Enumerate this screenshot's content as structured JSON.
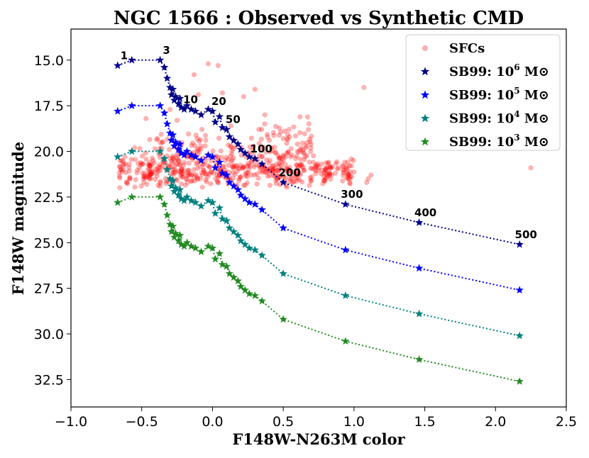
{
  "chart_data": {
    "type": "scatter",
    "title": "NGC 1566 : Observed vs Synthetic CMD",
    "xlabel": "F148W-N263M color",
    "ylabel": "F148W magnitude",
    "xlim": [
      -1.0,
      2.5
    ],
    "ylim": [
      34.0,
      13.3
    ],
    "y_inverted": true,
    "xticks": [
      -1.0,
      -0.5,
      0.0,
      0.5,
      1.0,
      1.5,
      2.0,
      2.5
    ],
    "xtick_labels": [
      "−1.0",
      "−0.5",
      "0.0",
      "0.5",
      "1.0",
      "1.5",
      "2.0",
      "2.5"
    ],
    "yticks": [
      15.0,
      17.5,
      20.0,
      22.5,
      25.0,
      27.5,
      30.0,
      32.5
    ],
    "ytick_labels": [
      "15.0",
      "17.5",
      "20.0",
      "22.5",
      "25.0",
      "27.5",
      "30.0",
      "32.5"
    ],
    "legend_position": "top-right",
    "sfc_cloud": {
      "name": "SFCs",
      "color": "#ff0000",
      "count": 650,
      "color_range": [
        -0.68,
        2.25
      ],
      "magnitude_range": [
        15.0,
        22.0
      ],
      "note": "observed SFCs: dense band at F148W 20-22 mag, sparser bright tail to ~15 mag"
    },
    "sfc_points": [
      [
        -0.03,
        15.2
      ],
      [
        0.04,
        15.3
      ],
      [
        -0.13,
        15.8
      ],
      [
        0.07,
        16.8
      ],
      [
        1.07,
        16.5
      ],
      [
        1.1,
        21.5
      ],
      [
        1.09,
        21.7
      ],
      [
        1.12,
        21.3
      ],
      [
        2.25,
        20.9
      ],
      [
        0.95,
        21.2
      ],
      [
        0.82,
        20.6
      ],
      [
        0.66,
        19.8
      ],
      [
        0.5,
        19.3
      ],
      [
        0.37,
        18.0
      ],
      [
        0.22,
        17.0
      ],
      [
        -0.1,
        16.9
      ],
      [
        -0.3,
        17.7
      ],
      [
        -0.25,
        18.3
      ],
      [
        -0.47,
        18.2
      ],
      [
        0.13,
        18.6
      ],
      [
        0.54,
        18.8
      ],
      [
        0.6,
        19.6
      ],
      [
        -0.55,
        19.8
      ],
      [
        -0.62,
        20.3
      ],
      [
        0.3,
        16.6
      ]
    ],
    "series": [
      {
        "name": "SB99: 10^6 M⊙",
        "legend_base": "SB99: 10",
        "legend_exp": "6",
        "legend_unit": " M⊙",
        "color": "#00008b",
        "x": [
          -0.67,
          -0.57,
          -0.37,
          -0.34,
          -0.32,
          -0.3,
          -0.29,
          -0.28,
          -0.27,
          -0.26,
          -0.24,
          -0.23,
          -0.22,
          -0.2,
          -0.18,
          -0.15,
          -0.12,
          -0.08,
          -0.03,
          0.0,
          0.02,
          0.05,
          0.07,
          0.1,
          0.12,
          0.15,
          0.18,
          0.2,
          0.23,
          0.26,
          0.3,
          0.35,
          0.5,
          0.94,
          1.46,
          2.17
        ],
        "y": [
          15.3,
          15.0,
          15.0,
          15.4,
          16.0,
          16.5,
          16.9,
          16.6,
          17.2,
          17.0,
          17.4,
          17.1,
          17.6,
          17.7,
          17.5,
          17.7,
          17.8,
          18.0,
          17.7,
          17.8,
          18.4,
          18.1,
          18.7,
          18.8,
          19.2,
          19.4,
          19.6,
          19.9,
          20.1,
          20.3,
          20.4,
          20.7,
          21.7,
          22.9,
          23.9,
          25.1
        ]
      },
      {
        "name": "SB99: 10^5 M⊙",
        "legend_base": "SB99: 10",
        "legend_exp": "5",
        "legend_unit": " M⊙",
        "color": "#0000ff",
        "x": [
          -0.67,
          -0.57,
          -0.37,
          -0.34,
          -0.32,
          -0.3,
          -0.29,
          -0.28,
          -0.27,
          -0.26,
          -0.24,
          -0.23,
          -0.22,
          -0.2,
          -0.18,
          -0.15,
          -0.12,
          -0.08,
          -0.03,
          0.0,
          0.02,
          0.05,
          0.07,
          0.1,
          0.12,
          0.15,
          0.18,
          0.2,
          0.23,
          0.26,
          0.3,
          0.35,
          0.5,
          0.94,
          1.46,
          2.17
        ],
        "y": [
          17.8,
          17.5,
          17.5,
          17.9,
          18.5,
          19.0,
          19.4,
          19.1,
          19.7,
          19.5,
          19.9,
          19.6,
          20.1,
          20.2,
          20.0,
          20.2,
          20.3,
          20.5,
          20.2,
          20.3,
          20.9,
          20.6,
          21.2,
          21.3,
          21.7,
          21.9,
          22.1,
          22.4,
          22.6,
          22.8,
          22.9,
          23.2,
          24.2,
          25.4,
          26.4,
          27.6
        ]
      },
      {
        "name": "SB99: 10^4 M⊙",
        "legend_base": "SB99: 10",
        "legend_exp": "4",
        "legend_unit": " M⊙",
        "color": "#008080",
        "x": [
          -0.67,
          -0.57,
          -0.37,
          -0.34,
          -0.32,
          -0.3,
          -0.29,
          -0.28,
          -0.27,
          -0.26,
          -0.24,
          -0.23,
          -0.22,
          -0.2,
          -0.18,
          -0.15,
          -0.12,
          -0.08,
          -0.03,
          0.0,
          0.02,
          0.05,
          0.07,
          0.1,
          0.12,
          0.15,
          0.18,
          0.2,
          0.23,
          0.26,
          0.3,
          0.35,
          0.5,
          0.94,
          1.46,
          2.17
        ],
        "y": [
          20.3,
          20.0,
          20.0,
          20.4,
          21.0,
          21.5,
          21.9,
          21.6,
          22.2,
          22.0,
          22.4,
          22.1,
          22.6,
          22.7,
          22.5,
          22.7,
          22.8,
          23.0,
          22.7,
          22.8,
          23.4,
          23.1,
          23.7,
          23.8,
          24.2,
          24.4,
          24.6,
          24.9,
          25.1,
          25.3,
          25.4,
          25.7,
          26.7,
          27.9,
          28.9,
          30.1
        ]
      },
      {
        "name": "SB99: 10^3 M⊙",
        "legend_base": "SB99: 10",
        "legend_exp": "3",
        "legend_unit": " M⊙",
        "color": "#228b22",
        "x": [
          -0.67,
          -0.57,
          -0.37,
          -0.34,
          -0.32,
          -0.3,
          -0.29,
          -0.28,
          -0.27,
          -0.26,
          -0.24,
          -0.23,
          -0.22,
          -0.2,
          -0.18,
          -0.15,
          -0.12,
          -0.08,
          -0.03,
          0.0,
          0.02,
          0.05,
          0.07,
          0.1,
          0.12,
          0.15,
          0.18,
          0.2,
          0.23,
          0.26,
          0.3,
          0.35,
          0.5,
          0.94,
          1.46,
          2.17
        ],
        "y": [
          22.8,
          22.5,
          22.5,
          22.9,
          23.5,
          24.0,
          24.4,
          24.1,
          24.7,
          24.5,
          24.9,
          24.6,
          25.1,
          25.2,
          25.0,
          25.2,
          25.3,
          25.5,
          25.2,
          25.3,
          25.9,
          25.6,
          26.2,
          26.3,
          26.7,
          26.9,
          27.1,
          27.4,
          27.6,
          27.8,
          27.9,
          28.2,
          29.2,
          30.4,
          31.4,
          32.6
        ]
      }
    ],
    "annotations": [
      {
        "text": "1",
        "x": -0.67,
        "y": 15.3
      },
      {
        "text": "3",
        "x": -0.37,
        "y": 15.0
      },
      {
        "text": "10",
        "x": -0.2,
        "y": 17.7
      },
      {
        "text": "20",
        "x": 0.0,
        "y": 17.8
      },
      {
        "text": "50",
        "x": 0.1,
        "y": 18.8
      },
      {
        "text": "100",
        "x": 0.3,
        "y": 20.4
      },
      {
        "text": "200",
        "x": 0.5,
        "y": 21.7
      },
      {
        "text": "300",
        "x": 0.94,
        "y": 22.9
      },
      {
        "text": "400",
        "x": 1.46,
        "y": 23.9
      },
      {
        "text": "500",
        "x": 2.17,
        "y": 25.1
      }
    ],
    "legend": [
      {
        "label": "SFCs",
        "marker": "circle",
        "color": "#ff0000"
      },
      {
        "label": "SB99: 10^6 M⊙",
        "marker": "star",
        "color": "#00008b"
      },
      {
        "label": "SB99: 10^5 M⊙",
        "marker": "star",
        "color": "#0000ff"
      },
      {
        "label": "SB99: 10^4 M⊙",
        "marker": "star",
        "color": "#008080"
      },
      {
        "label": "SB99: 10^3 M⊙",
        "marker": "star",
        "color": "#228b22"
      }
    ]
  }
}
